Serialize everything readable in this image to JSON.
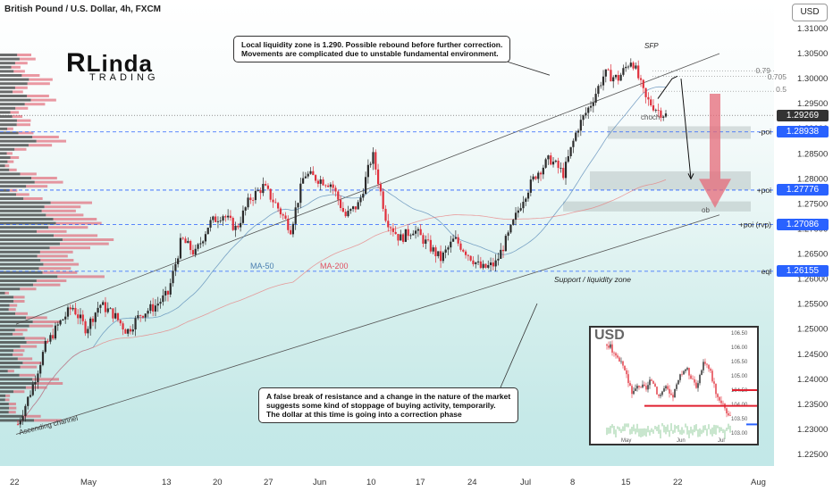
{
  "title": "British Pound / U.S. Dollar, 4h, FXCM",
  "currency_button": "USD",
  "logo": {
    "main": "Linda",
    "sub": "TRADING"
  },
  "annotations": {
    "top_note": [
      "Local liquidity zone is 1.290. Possible rebound before further correction.",
      "Movements are complicated due to unstable fundamental environment."
    ],
    "bottom_note": [
      "A false break of resistance and a change in the nature of the market",
      "suggests some kind of stoppage of buying activity, temporarily.",
      "The dollar at this time is going into a correction phase"
    ],
    "sfp": "SFP",
    "choch": "choch",
    "ob": "ob",
    "fib_079": "0.79",
    "fib_0705": "0.705",
    "fib_05": "0.5",
    "support": "Support / liquidity zone",
    "channel": "Ascending channel",
    "ma50": "MA-50",
    "ma200": "MA-200"
  },
  "levels": [
    {
      "label": "-poi",
      "price": 1.28938,
      "tag": "1.28938",
      "color": "#2962ff"
    },
    {
      "label": "+poi",
      "price": 1.27776,
      "tag": "1.27776",
      "color": "#2962ff"
    },
    {
      "label": "+poi (rvp)",
      "price": 1.27086,
      "tag": "1.27086",
      "color": "#2962ff"
    },
    {
      "label": "eql",
      "price": 1.26155,
      "tag": "1.26155",
      "color": "#2962ff"
    }
  ],
  "current_price": {
    "value": 1.29269,
    "tag": "1.29269",
    "color": "#333333"
  },
  "inset": {
    "title": "USD",
    "y_ticks": [
      "106.50",
      "106.00",
      "105.50",
      "105.00",
      "104.50",
      "104.00",
      "103.50",
      "103.00"
    ],
    "x_ticks": [
      "May",
      "Jun",
      "Jul"
    ]
  },
  "chart_data": {
    "type": "candlestick",
    "symbol": "GBPUSD",
    "timeframe": "4h",
    "x_ticks": [
      "22",
      "May",
      "13",
      "20",
      "27",
      "Jun",
      "10",
      "17",
      "24",
      "Jul",
      "8",
      "15",
      "22",
      "Aug"
    ],
    "y_ticks": [
      "1.31000",
      "1.30500",
      "1.30000",
      "1.29500",
      "1.29000",
      "1.28500",
      "1.28000",
      "1.27500",
      "1.27000",
      "1.26500",
      "1.26000",
      "1.25500",
      "1.25000",
      "1.24500",
      "1.24000",
      "1.23500",
      "1.23000",
      "1.22500"
    ],
    "ylim": [
      1.2225,
      1.3125
    ],
    "price_path": [
      [
        0,
        1.231
      ],
      [
        0.02,
        1.238
      ],
      [
        0.04,
        1.2465
      ],
      [
        0.06,
        1.251
      ],
      [
        0.08,
        1.2545
      ],
      [
        0.1,
        1.25
      ],
      [
        0.12,
        1.255
      ],
      [
        0.14,
        1.253
      ],
      [
        0.16,
        1.2495
      ],
      [
        0.18,
        1.253
      ],
      [
        0.2,
        1.2545
      ],
      [
        0.22,
        1.257
      ],
      [
        0.24,
        1.268
      ],
      [
        0.26,
        1.265
      ],
      [
        0.28,
        1.271
      ],
      [
        0.3,
        1.273
      ],
      [
        0.32,
        1.27
      ],
      [
        0.34,
        1.276
      ],
      [
        0.36,
        1.2785
      ],
      [
        0.38,
        1.2745
      ],
      [
        0.4,
        1.27
      ],
      [
        0.42,
        1.281
      ],
      [
        0.44,
        1.28
      ],
      [
        0.46,
        1.279
      ],
      [
        0.48,
        1.2725
      ],
      [
        0.5,
        1.275
      ],
      [
        0.52,
        1.285
      ],
      [
        0.54,
        1.272
      ],
      [
        0.56,
        1.268
      ],
      [
        0.58,
        1.27
      ],
      [
        0.6,
        1.267
      ],
      [
        0.62,
        1.264
      ],
      [
        0.64,
        1.268
      ],
      [
        0.66,
        1.265
      ],
      [
        0.68,
        1.262
      ],
      [
        0.7,
        1.263
      ],
      [
        0.72,
        1.269
      ],
      [
        0.74,
        1.276
      ],
      [
        0.76,
        1.281
      ],
      [
        0.78,
        1.284
      ],
      [
        0.8,
        1.281
      ],
      [
        0.82,
        1.29
      ],
      [
        0.84,
        1.295
      ],
      [
        0.86,
        1.301
      ],
      [
        0.88,
        1.3
      ],
      [
        0.9,
        1.304
      ],
      [
        0.92,
        1.296
      ],
      [
        0.94,
        1.2935
      ],
      [
        0.95,
        1.2927
      ]
    ],
    "channel": {
      "upper": [
        [
          1.2515
        ],
        [
          1.305
        ]
      ],
      "lower": [
        [
          1.231
        ],
        [
          1.272
        ]
      ]
    },
    "series": [
      {
        "name": "MA-50"
      },
      {
        "name": "MA-200"
      }
    ],
    "fib_levels": [
      0.79,
      0.705,
      0.5
    ],
    "inset_usd": [
      106.1,
      105.9,
      105.5,
      105.0,
      104.4,
      104.7,
      104.5,
      104.9,
      104.3,
      104.6,
      104.2,
      104.8,
      105.3,
      105.0,
      104.6,
      105.6,
      105.1,
      104.3,
      104.0,
      103.5
    ]
  }
}
